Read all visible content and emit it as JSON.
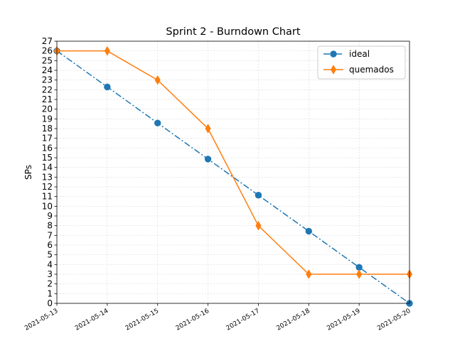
{
  "chart_data": {
    "type": "line",
    "title": "Sprint 2 - Burndown Chart",
    "xlabel": "",
    "ylabel": "SPs",
    "categories": [
      "2021-05-13",
      "2021-05-14",
      "2021-05-15",
      "2021-05-16",
      "2021-05-17",
      "2021-05-18",
      "2021-05-19",
      "2021-05-20"
    ],
    "ylim": [
      0,
      27
    ],
    "yticks": [
      0,
      1,
      2,
      3,
      4,
      5,
      6,
      7,
      8,
      9,
      10,
      11,
      12,
      13,
      14,
      15,
      16,
      17,
      18,
      19,
      20,
      21,
      22,
      23,
      24,
      25,
      26,
      27
    ],
    "grid": true,
    "legend_position": "top-right",
    "series": [
      {
        "name": "ideal",
        "values": [
          26,
          22.29,
          18.57,
          14.86,
          11.14,
          7.43,
          3.71,
          0
        ],
        "color": "#1f77b4",
        "line_style": "dash-dot",
        "marker": "circle"
      },
      {
        "name": "quemados",
        "values": [
          26,
          26,
          23,
          18,
          8,
          3,
          3,
          3
        ],
        "color": "#ff7f0e",
        "line_style": "solid",
        "marker": "thin-diamond"
      }
    ]
  }
}
